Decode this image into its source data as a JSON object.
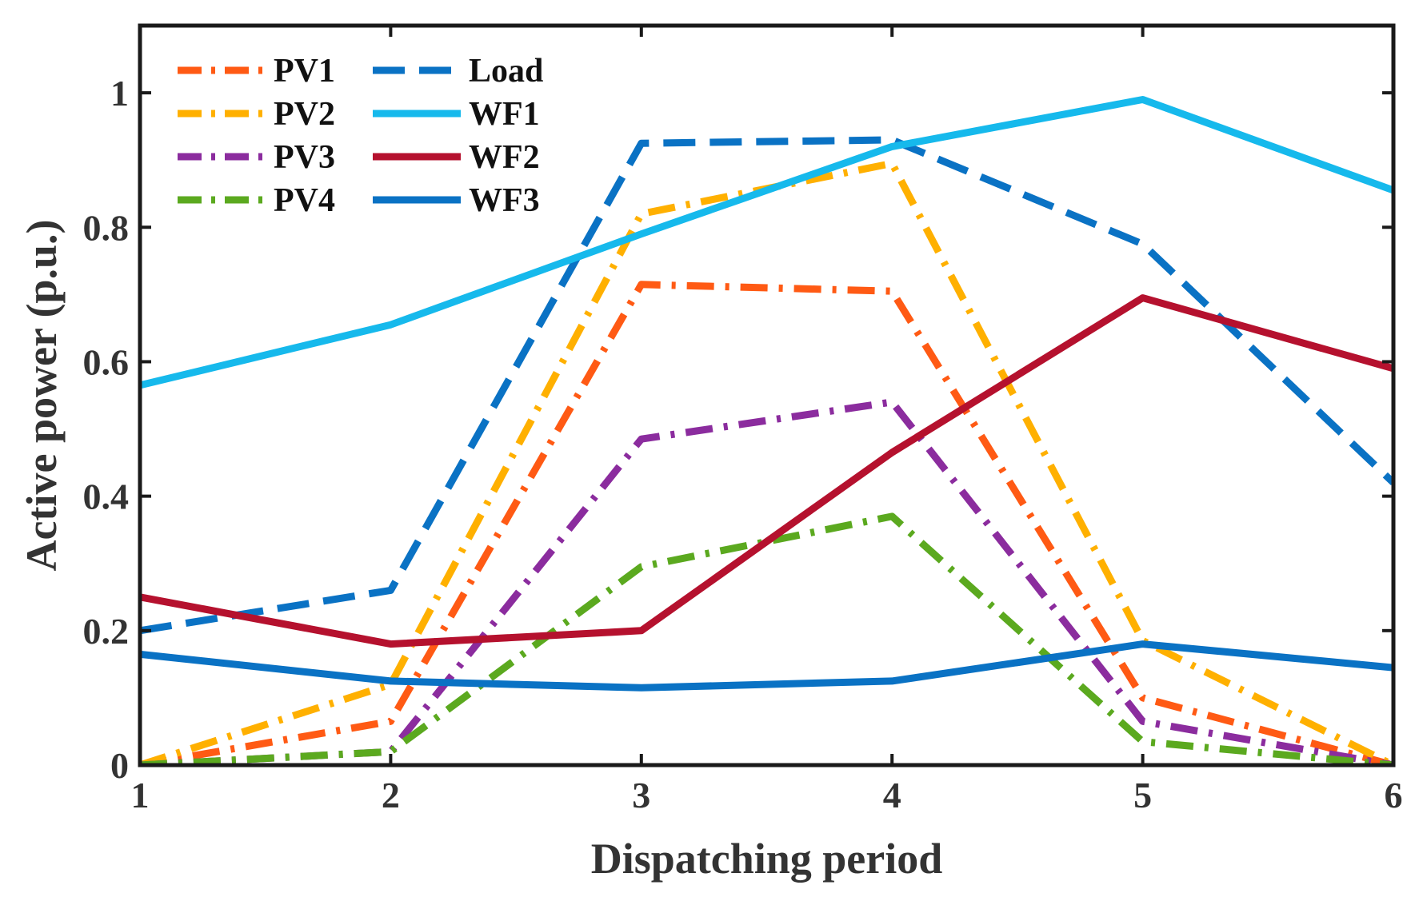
{
  "chart_data": {
    "type": "line",
    "title": "",
    "xlabel": "Dispatching period",
    "ylabel": "Active power (p.u.)",
    "x": [
      1,
      2,
      3,
      4,
      5,
      6
    ],
    "xlim": [
      1,
      6
    ],
    "ylim": [
      0,
      1.1
    ],
    "xticks": [
      1,
      2,
      3,
      4,
      5,
      6
    ],
    "xtick_labels": [
      "1",
      "2",
      "3",
      "4",
      "5",
      "6"
    ],
    "yticks": [
      0,
      0.2,
      0.4,
      0.6,
      0.8,
      1
    ],
    "ytick_labels": [
      "0",
      "0.2",
      "0.4",
      "0.6",
      "0.8",
      "1"
    ],
    "grid": false,
    "legend_position": "top-left",
    "series": [
      {
        "name": "PV1",
        "style": "dash-dot",
        "color": "#FF5A14",
        "values": [
          0.0,
          0.065,
          0.715,
          0.705,
          0.1,
          0.0
        ]
      },
      {
        "name": "PV2",
        "style": "dash-dot",
        "color": "#FFB000",
        "values": [
          0.0,
          0.12,
          0.82,
          0.895,
          0.185,
          0.0
        ]
      },
      {
        "name": "PV3",
        "style": "dash-dot",
        "color": "#8B2C9E",
        "values": [
          0.0,
          0.02,
          0.485,
          0.54,
          0.065,
          0.0
        ]
      },
      {
        "name": "PV4",
        "style": "dash-dot",
        "color": "#5BA91F",
        "values": [
          0.0,
          0.02,
          0.295,
          0.37,
          0.035,
          0.0
        ]
      },
      {
        "name": "Load",
        "style": "dashed",
        "color": "#0A72C4",
        "values": [
          0.2,
          0.26,
          0.925,
          0.93,
          0.775,
          0.42
        ]
      },
      {
        "name": "WF1",
        "style": "solid",
        "color": "#16B9EC",
        "values": [
          0.565,
          0.655,
          0.79,
          0.92,
          0.99,
          0.855
        ]
      },
      {
        "name": "WF2",
        "style": "solid",
        "color": "#B5112E",
        "values": [
          0.25,
          0.18,
          0.2,
          0.465,
          0.695,
          0.59
        ]
      },
      {
        "name": "WF3",
        "style": "solid",
        "color": "#0A72C4",
        "values": [
          0.165,
          0.125,
          0.115,
          0.125,
          0.18,
          0.145
        ]
      }
    ]
  }
}
